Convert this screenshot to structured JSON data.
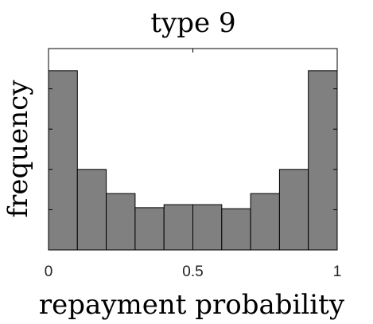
{
  "chart_data": {
    "type": "bar",
    "title": "type 9",
    "xlabel": "repayment probability",
    "ylabel": "frequency",
    "bin_edges": [
      0,
      0.1,
      0.2,
      0.3,
      0.4,
      0.5,
      0.6,
      0.7,
      0.8,
      0.9,
      1.0
    ],
    "values": [
      0.89,
      0.4,
      0.28,
      0.21,
      0.225,
      0.225,
      0.205,
      0.28,
      0.4,
      0.89
    ],
    "xlim": [
      0,
      1
    ],
    "ylim": [
      0,
      1
    ],
    "xticks": [
      0,
      0.5,
      1
    ],
    "xtick_labels": [
      "0",
      "0.5",
      "1"
    ],
    "ytick_values": [
      0.2,
      0.4,
      0.6,
      0.8
    ],
    "ytick_labels": false,
    "bar_color": "#808080",
    "bar_edge_color": "#000000",
    "grid": false,
    "legend": false
  }
}
